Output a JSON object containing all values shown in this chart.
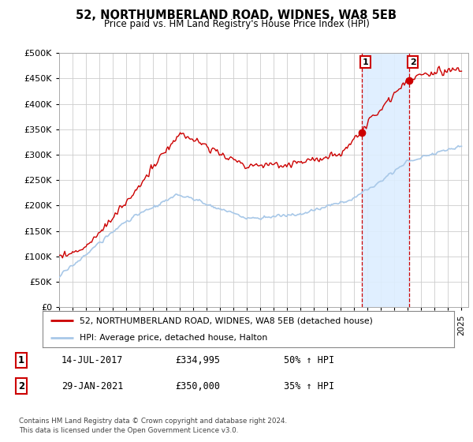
{
  "title": "52, NORTHUMBERLAND ROAD, WIDNES, WA8 5EB",
  "subtitle": "Price paid vs. HM Land Registry's House Price Index (HPI)",
  "legend_line1": "52, NORTHUMBERLAND ROAD, WIDNES, WA8 5EB (detached house)",
  "legend_line2": "HPI: Average price, detached house, Halton",
  "transaction1_date": "14-JUL-2017",
  "transaction1_price": "£334,995",
  "transaction1_hpi": "50% ↑ HPI",
  "transaction2_date": "29-JAN-2021",
  "transaction2_price": "£350,000",
  "transaction2_hpi": "35% ↑ HPI",
  "footer": "Contains HM Land Registry data © Crown copyright and database right 2024.\nThis data is licensed under the Open Government Licence v3.0.",
  "hpi_color": "#a8c8e8",
  "price_color": "#cc0000",
  "vline_color": "#cc0000",
  "highlight_color": "#ddeeff",
  "ylim": [
    0,
    500000
  ],
  "yticks": [
    0,
    50000,
    100000,
    150000,
    200000,
    250000,
    300000,
    350000,
    400000,
    450000,
    500000
  ],
  "transaction1_x": 2017.54,
  "transaction2_x": 2021.08,
  "background_color": "#ffffff",
  "grid_color": "#cccccc"
}
